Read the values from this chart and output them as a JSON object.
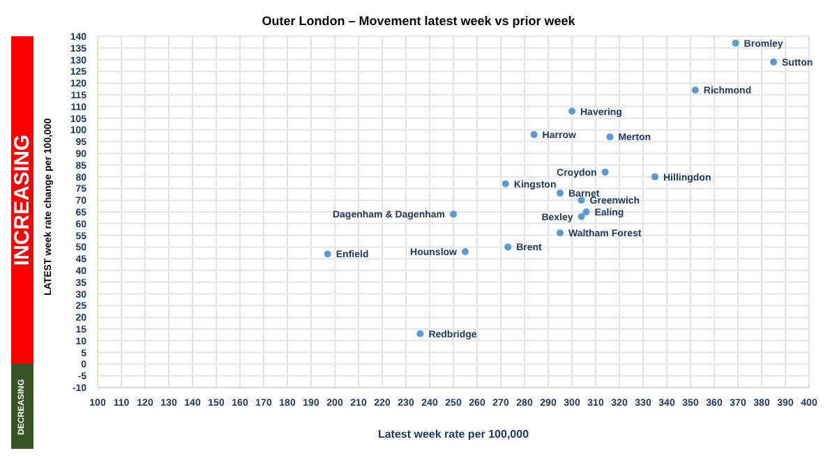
{
  "chart_data": {
    "type": "scatter",
    "title": "Outer London – Movement latest week vs prior week",
    "xlabel": "Latest week rate per 100,000",
    "ylabel": "LATEST week rate change per 100,000",
    "x": [
      369,
      385,
      352,
      300,
      284,
      316,
      314,
      335,
      272,
      295,
      304,
      306,
      304,
      295,
      273,
      255,
      250,
      197,
      236
    ],
    "series": [
      {
        "color": "#5b9bd5",
        "values": [
          137,
          129,
          117,
          108,
          98,
          97,
          82,
          80,
          77,
          73,
          70,
          65,
          63,
          56,
          50,
          48,
          64,
          47,
          13
        ]
      }
    ],
    "annotations": [
      "INCREASING",
      "DECREASING",
      {
        "text": "Bromley",
        "x": 369,
        "y": 137
      },
      {
        "text": "Sutton",
        "x": 385,
        "y": 129
      },
      {
        "text": "Richmond",
        "x": 352,
        "y": 117
      },
      {
        "text": "Havering",
        "x": 300,
        "y": 108
      },
      {
        "text": "Harrow",
        "x": 284,
        "y": 98
      },
      {
        "text": "Merton",
        "x": 316,
        "y": 97
      },
      {
        "text": "Croydon",
        "x": 314,
        "y": 82
      },
      {
        "text": "Hillingdon",
        "x": 335,
        "y": 80
      },
      {
        "text": "Kingston",
        "x": 272,
        "y": 77
      },
      {
        "text": "Barnet",
        "x": 295,
        "y": 73
      },
      {
        "text": "Greenwich",
        "x": 304,
        "y": 70
      },
      {
        "text": "Ealing",
        "x": 306,
        "y": 65
      },
      {
        "text": "Bexley",
        "x": 304,
        "y": 63
      },
      {
        "text": "Waltham Forest",
        "x": 295,
        "y": 56
      },
      {
        "text": "Brent",
        "x": 273,
        "y": 50
      },
      {
        "text": "Hounslow",
        "x": 255,
        "y": 48
      },
      {
        "text": "Dagenham & Dagenham",
        "x": 250,
        "y": 64
      },
      {
        "text": "Enfield",
        "x": 197,
        "y": 47
      },
      {
        "text": "Redbridge",
        "x": 236,
        "y": 13
      }
    ],
    "xlim": [
      100,
      400
    ],
    "xticks": [
      100,
      110,
      120,
      130,
      140,
      150,
      160,
      170,
      180,
      190,
      200,
      210,
      220,
      230,
      240,
      250,
      260,
      270,
      280,
      290,
      300,
      310,
      320,
      330,
      340,
      350,
      360,
      370,
      380,
      390,
      400
    ],
    "ylim": [
      -10,
      140
    ],
    "yticks": [
      -10,
      -5,
      0,
      5,
      10,
      15,
      20,
      25,
      30,
      35,
      40,
      45,
      50,
      55,
      60,
      65,
      70,
      75,
      80,
      85,
      90,
      95,
      100,
      105,
      110,
      115,
      120,
      125,
      130,
      135,
      140
    ],
    "grid": true,
    "marker": "circle",
    "legend": false
  }
}
